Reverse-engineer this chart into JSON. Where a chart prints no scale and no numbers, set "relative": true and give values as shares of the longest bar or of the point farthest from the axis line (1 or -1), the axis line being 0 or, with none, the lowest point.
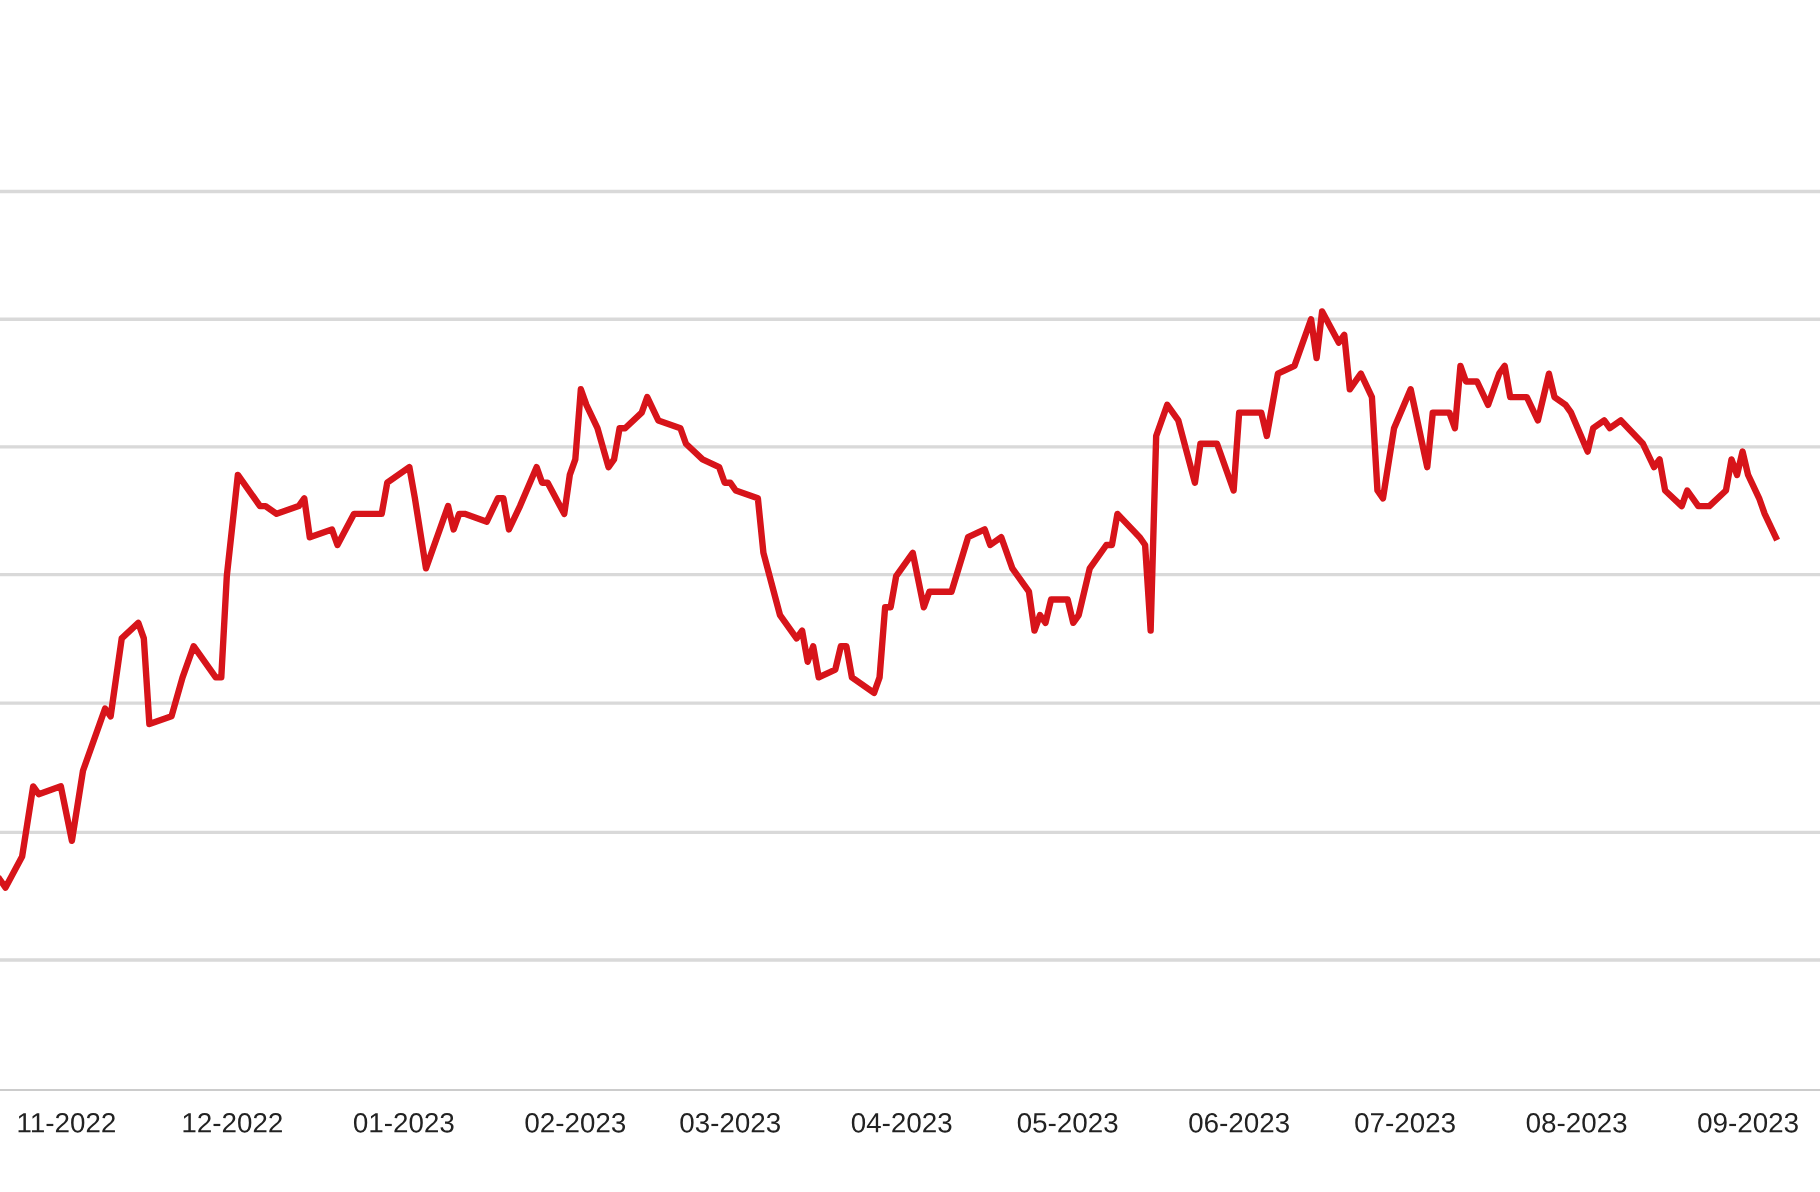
{
  "chart_data": {
    "type": "line",
    "relative": true,
    "legend": false,
    "marker": "none",
    "line_style": "solid",
    "xlim": [
      "2022-10-20",
      "2023-09-14"
    ],
    "xticks": [
      {
        "value": "2022-11-01",
        "label": "11-2022"
      },
      {
        "value": "2022-12-01",
        "label": "12-2022"
      },
      {
        "value": "2023-01-01",
        "label": "01-2023"
      },
      {
        "value": "2023-02-01",
        "label": "02-2023"
      },
      {
        "value": "2023-03-01",
        "label": "03-2023"
      },
      {
        "value": "2023-04-01",
        "label": "04-2023"
      },
      {
        "value": "2023-05-01",
        "label": "05-2023"
      },
      {
        "value": "2023-06-01",
        "label": "06-2023"
      },
      {
        "value": "2023-07-01",
        "label": "07-2023"
      },
      {
        "value": "2023-08-01",
        "label": "08-2023"
      },
      {
        "value": "2023-09-01",
        "label": "09-2023"
      }
    ],
    "ref_lines": [
      {
        "axis": "y",
        "value": 0.167,
        "color": "#d9d9d9"
      },
      {
        "axis": "y",
        "value": 0.331,
        "color": "#d9d9d9"
      },
      {
        "axis": "y",
        "value": 0.497,
        "color": "#d9d9d9"
      },
      {
        "axis": "y",
        "value": 0.662,
        "color": "#d9d9d9"
      },
      {
        "axis": "y",
        "value": 0.826,
        "color": "#d9d9d9"
      },
      {
        "axis": "y",
        "value": 0.99,
        "color": "#d9d9d9"
      },
      {
        "axis": "y",
        "value": 1.154,
        "color": "#d9d9d9"
      }
    ],
    "tick_labels": "x",
    "series": [
      {
        "color": "#d7141a",
        "x": [
          "2022-10-20",
          "2022-10-21",
          "2022-10-24",
          "2022-10-26",
          "2022-10-27",
          "2022-10-31",
          "2022-11-02",
          "2022-11-04",
          "2022-11-07",
          "2022-11-08",
          "2022-11-09",
          "2022-11-11",
          "2022-11-14",
          "2022-11-15",
          "2022-11-16",
          "2022-11-20",
          "2022-11-22",
          "2022-11-24",
          "2022-11-28",
          "2022-11-29",
          "2022-11-30",
          "2022-12-02",
          "2022-12-06",
          "2022-12-07",
          "2022-12-09",
          "2022-12-13",
          "2022-12-14",
          "2022-12-15",
          "2022-12-19",
          "2022-12-20",
          "2022-12-23",
          "2022-12-27",
          "2022-12-28",
          "2022-12-29",
          "2023-01-02",
          "2023-01-03",
          "2023-01-05",
          "2023-01-09",
          "2023-01-10",
          "2023-01-11",
          "2023-01-12",
          "2023-01-16",
          "2023-01-18",
          "2023-01-19",
          "2023-01-20",
          "2023-01-22",
          "2023-01-25",
          "2023-01-26",
          "2023-01-27",
          "2023-01-30",
          "2023-01-31",
          "2023-02-01",
          "2023-02-02",
          "2023-02-03",
          "2023-02-05",
          "2023-02-07",
          "2023-02-08",
          "2023-02-09",
          "2023-02-10",
          "2023-02-13",
          "2023-02-14",
          "2023-02-16",
          "2023-02-20",
          "2023-02-21",
          "2023-02-24",
          "2023-02-27",
          "2023-02-28",
          "2023-03-01",
          "2023-03-02",
          "2023-03-06",
          "2023-03-07",
          "2023-03-10",
          "2023-03-13",
          "2023-03-14",
          "2023-03-15",
          "2023-03-16",
          "2023-03-17",
          "2023-03-20",
          "2023-03-21",
          "2023-03-22",
          "2023-03-23",
          "2023-03-27",
          "2023-03-28",
          "2023-03-29",
          "2023-03-30",
          "2023-03-31",
          "2023-04-03",
          "2023-04-05",
          "2023-04-06",
          "2023-04-10",
          "2023-04-13",
          "2023-04-16",
          "2023-04-17",
          "2023-04-19",
          "2023-04-21",
          "2023-04-24",
          "2023-04-25",
          "2023-04-26",
          "2023-04-27",
          "2023-04-28",
          "2023-05-01",
          "2023-05-02",
          "2023-05-03",
          "2023-05-05",
          "2023-05-08",
          "2023-05-09",
          "2023-05-10",
          "2023-05-14",
          "2023-05-15",
          "2023-05-16",
          "2023-05-17",
          "2023-05-19",
          "2023-05-21",
          "2023-05-24",
          "2023-05-25",
          "2023-05-28",
          "2023-05-31",
          "2023-06-01",
          "2023-06-05",
          "2023-06-06",
          "2023-06-07",
          "2023-06-08",
          "2023-06-11",
          "2023-06-14",
          "2023-06-15",
          "2023-06-16",
          "2023-06-19",
          "2023-06-20",
          "2023-06-21",
          "2023-06-23",
          "2023-06-25",
          "2023-06-26",
          "2023-06-27",
          "2023-06-29",
          "2023-07-02",
          "2023-07-05",
          "2023-07-06",
          "2023-07-09",
          "2023-07-10",
          "2023-07-11",
          "2023-07-12",
          "2023-07-14",
          "2023-07-16",
          "2023-07-18",
          "2023-07-19",
          "2023-07-20",
          "2023-07-23",
          "2023-07-25",
          "2023-07-27",
          "2023-07-28",
          "2023-07-30",
          "2023-07-31",
          "2023-08-03",
          "2023-08-04",
          "2023-08-06",
          "2023-08-07",
          "2023-08-09",
          "2023-08-13",
          "2023-08-15",
          "2023-08-16",
          "2023-08-17",
          "2023-08-20",
          "2023-08-21",
          "2023-08-23",
          "2023-08-25",
          "2023-08-28",
          "2023-08-29",
          "2023-08-30",
          "2023-08-31",
          "2023-09-01",
          "2023-09-03",
          "2023-09-04",
          "2023-09-06"
        ],
        "values": [
          0.27,
          0.26,
          0.3,
          0.39,
          0.38,
          0.39,
          0.32,
          0.41,
          0.47,
          0.49,
          0.48,
          0.58,
          0.6,
          0.58,
          0.47,
          0.48,
          0.53,
          0.57,
          0.53,
          0.53,
          0.66,
          0.79,
          0.75,
          0.75,
          0.74,
          0.75,
          0.76,
          0.71,
          0.72,
          0.7,
          0.74,
          0.74,
          0.74,
          0.78,
          0.8,
          0.76,
          0.67,
          0.75,
          0.72,
          0.74,
          0.74,
          0.73,
          0.76,
          0.76,
          0.72,
          0.75,
          0.8,
          0.78,
          0.78,
          0.74,
          0.79,
          0.81,
          0.9,
          0.88,
          0.85,
          0.8,
          0.81,
          0.85,
          0.85,
          0.87,
          0.89,
          0.86,
          0.85,
          0.83,
          0.81,
          0.8,
          0.78,
          0.78,
          0.77,
          0.76,
          0.69,
          0.61,
          0.58,
          0.59,
          0.55,
          0.57,
          0.53,
          0.54,
          0.57,
          0.57,
          0.53,
          0.51,
          0.53,
          0.62,
          0.62,
          0.66,
          0.69,
          0.62,
          0.64,
          0.64,
          0.71,
          0.72,
          0.7,
          0.71,
          0.67,
          0.64,
          0.59,
          0.61,
          0.6,
          0.63,
          0.63,
          0.6,
          0.61,
          0.67,
          0.7,
          0.7,
          0.74,
          0.71,
          0.7,
          0.59,
          0.84,
          0.88,
          0.86,
          0.78,
          0.83,
          0.83,
          0.77,
          0.87,
          0.87,
          0.84,
          0.88,
          0.92,
          0.93,
          0.99,
          0.94,
          1.0,
          0.96,
          0.97,
          0.9,
          0.92,
          0.89,
          0.77,
          0.76,
          0.85,
          0.9,
          0.8,
          0.87,
          0.87,
          0.85,
          0.93,
          0.91,
          0.91,
          0.88,
          0.92,
          0.93,
          0.89,
          0.89,
          0.86,
          0.92,
          0.89,
          0.88,
          0.87,
          0.82,
          0.85,
          0.86,
          0.85,
          0.86,
          0.83,
          0.8,
          0.81,
          0.77,
          0.75,
          0.77,
          0.75,
          0.75,
          0.77,
          0.81,
          0.79,
          0.82,
          0.79,
          0.76,
          0.74,
          0.71
        ]
      }
    ]
  }
}
